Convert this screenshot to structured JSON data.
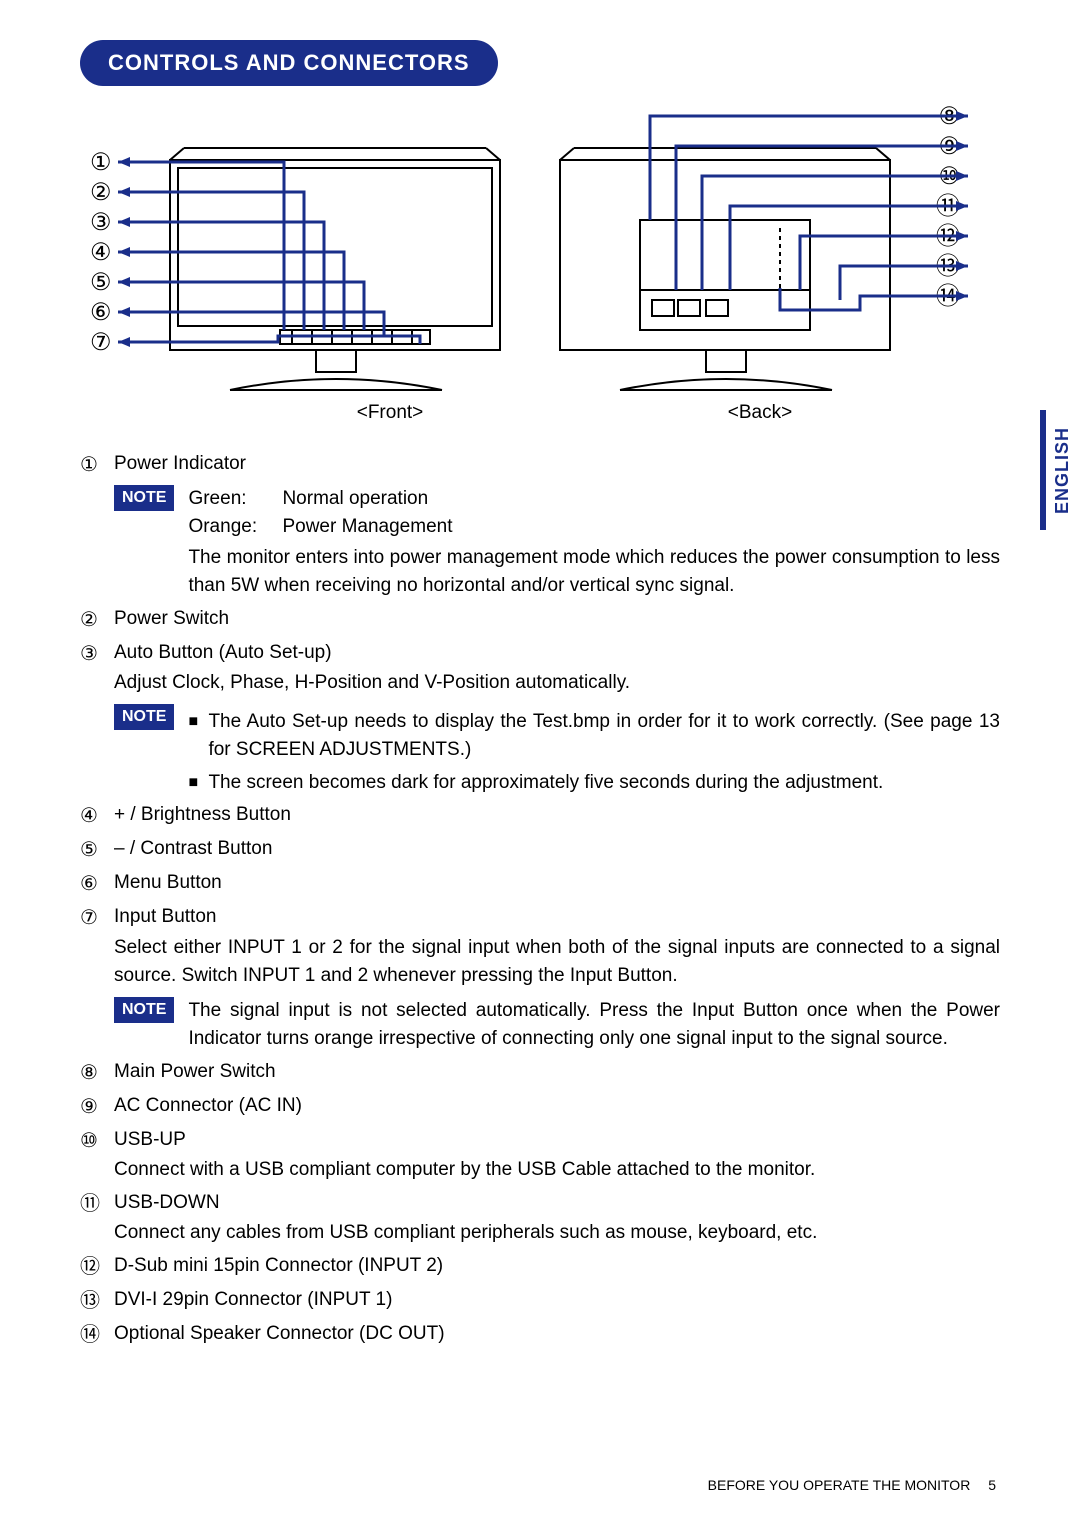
{
  "colors": {
    "accent": "#1a2e8a",
    "text": "#000000",
    "bg": "#ffffff",
    "line": "#1a2e8a"
  },
  "typography": {
    "title_fontsize": 22,
    "body_fontsize": 19,
    "circled_fontsize": 24,
    "note_fontsize": 16,
    "footer_fontsize": 14
  },
  "heading": "CONTROLS AND CONNECTORS",
  "language_tab": "ENGLISH",
  "diagram": {
    "front_label": "<Front>",
    "back_label": "<Back>",
    "left_numbers": [
      "①",
      "②",
      "③",
      "④",
      "⑤",
      "⑥",
      "⑦"
    ],
    "right_numbers": [
      "⑧",
      "⑨",
      "⑩",
      "⑪",
      "⑫",
      "⑬",
      "⑭"
    ]
  },
  "note_label": "NOTE",
  "items": [
    {
      "num": "①",
      "title": "Power Indicator",
      "note": {
        "kv": [
          {
            "k": "Green:",
            "v": "Normal operation"
          },
          {
            "k": "Orange:",
            "v": "Power Management"
          }
        ],
        "tail": "The monitor enters into power management mode which reduces the power consumption to less than 5W when receiving no horizontal and/or vertical sync signal."
      }
    },
    {
      "num": "②",
      "title": "Power Switch"
    },
    {
      "num": "③",
      "title": "Auto Button (Auto Set-up)",
      "desc": "Adjust Clock, Phase, H-Position and V-Position automatically.",
      "note": {
        "bullets": [
          "The Auto Set-up needs to display the Test.bmp in order for it to work correctly. (See page 13 for SCREEN ADJUSTMENTS.)",
          "The screen becomes dark for approximately five seconds during the adjustment."
        ]
      }
    },
    {
      "num": "④",
      "title": "+ / Brightness Button"
    },
    {
      "num": "⑤",
      "title": "– / Contrast Button"
    },
    {
      "num": "⑥",
      "title": "Menu Button"
    },
    {
      "num": "⑦",
      "title": "Input Button",
      "desc": "Select either INPUT 1 or 2 for the signal input when both of the signal inputs are connected to a signal source. Switch INPUT 1 and 2 whenever pressing the Input Button.",
      "note": {
        "text": "The signal input is not selected automatically. Press the Input Button once when the Power Indicator turns orange irrespective of connecting only one signal input to the signal source."
      }
    },
    {
      "num": "⑧",
      "title": "Main Power Switch"
    },
    {
      "num": "⑨",
      "title": "AC Connector (AC IN)"
    },
    {
      "num": "⑩",
      "title": "USB-UP",
      "desc": "Connect with a USB compliant computer by the USB Cable attached to the monitor."
    },
    {
      "num": "⑪",
      "title": "USB-DOWN",
      "desc": "Connect any cables from USB compliant peripherals such as mouse, keyboard, etc."
    },
    {
      "num": "⑫",
      "title": "D-Sub mini 15pin Connector (INPUT 2)"
    },
    {
      "num": "⑬",
      "title": "DVI-I 29pin Connector (INPUT 1)"
    },
    {
      "num": "⑭",
      "title": "Optional Speaker Connector (DC OUT)"
    }
  ],
  "footer": {
    "text": "BEFORE YOU OPERATE THE MONITOR",
    "page": "5"
  }
}
